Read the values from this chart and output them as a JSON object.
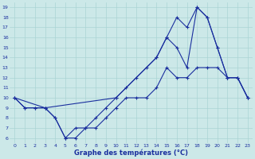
{
  "xlabel": "Graphe des températures (°C)",
  "xlim": [
    -0.5,
    23.5
  ],
  "ylim": [
    5.5,
    19.5
  ],
  "yticks": [
    6,
    7,
    8,
    9,
    10,
    11,
    12,
    13,
    14,
    15,
    16,
    17,
    18,
    19
  ],
  "xticks": [
    0,
    1,
    2,
    3,
    4,
    5,
    6,
    7,
    8,
    9,
    10,
    11,
    12,
    13,
    14,
    15,
    16,
    17,
    18,
    19,
    20,
    21,
    22,
    23
  ],
  "bg_color": "#cce8e8",
  "grid_color": "#aad4d4",
  "line_color": "#1a2f9e",
  "line1_x": [
    0,
    1,
    2,
    3,
    4,
    5,
    6,
    7,
    8,
    9,
    10,
    11,
    12,
    13,
    14,
    15,
    16,
    17,
    18,
    19,
    20,
    21,
    22,
    23
  ],
  "line1_y": [
    10,
    9,
    9,
    9,
    8,
    6,
    6,
    7,
    7,
    8,
    9,
    10,
    10,
    10,
    11,
    13,
    12,
    12,
    13,
    13,
    13,
    12,
    12,
    10
  ],
  "line2_x": [
    0,
    1,
    2,
    3,
    4,
    5,
    6,
    7,
    8,
    9,
    10,
    11,
    12,
    13,
    14,
    15,
    16,
    17,
    18,
    19,
    20,
    21,
    22,
    23
  ],
  "line2_y": [
    10,
    9,
    9,
    9,
    8,
    6,
    7,
    7,
    8,
    9,
    10,
    11,
    12,
    13,
    14,
    16,
    15,
    13,
    19,
    18,
    15,
    12,
    12,
    10
  ],
  "line3_x": [
    0,
    3,
    10,
    14,
    15,
    16,
    17,
    18,
    19,
    20,
    21,
    22,
    23
  ],
  "line3_y": [
    10,
    9,
    10,
    14,
    16,
    18,
    17,
    19,
    18,
    15,
    12,
    12,
    10
  ],
  "marker": "+"
}
